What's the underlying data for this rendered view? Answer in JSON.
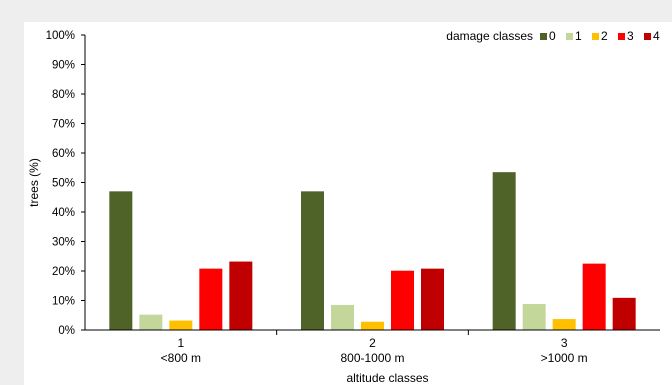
{
  "chart_data": {
    "type": "bar",
    "title": "",
    "xlabel": "altitude classes",
    "ylabel": "trees (%)",
    "ylim": [
      0,
      100
    ],
    "yticks": [
      0,
      10,
      20,
      30,
      40,
      50,
      60,
      70,
      80,
      90,
      100
    ],
    "ytick_suffix": "%",
    "categories": [
      {
        "id": "1",
        "label": "<800 m"
      },
      {
        "id": "2",
        "label": "800-1000 m"
      },
      {
        "id": "3",
        "label": ">1000 m"
      }
    ],
    "legend_title": "damage classes",
    "legend_position": "top-right",
    "grid": false,
    "series": [
      {
        "name": "0",
        "color": "#4f6228",
        "values": [
          47,
          47,
          53.5
        ]
      },
      {
        "name": "1",
        "color": "#c4d79b",
        "values": [
          5.2,
          8.5,
          8.8
        ]
      },
      {
        "name": "2",
        "color": "#ffc000",
        "values": [
          3.2,
          2.8,
          3.7
        ]
      },
      {
        "name": "3",
        "color": "#ff0000",
        "values": [
          20.8,
          20.1,
          22.5
        ]
      },
      {
        "name": "4",
        "color": "#c00000",
        "values": [
          23.2,
          20.8,
          10.9
        ]
      }
    ]
  }
}
